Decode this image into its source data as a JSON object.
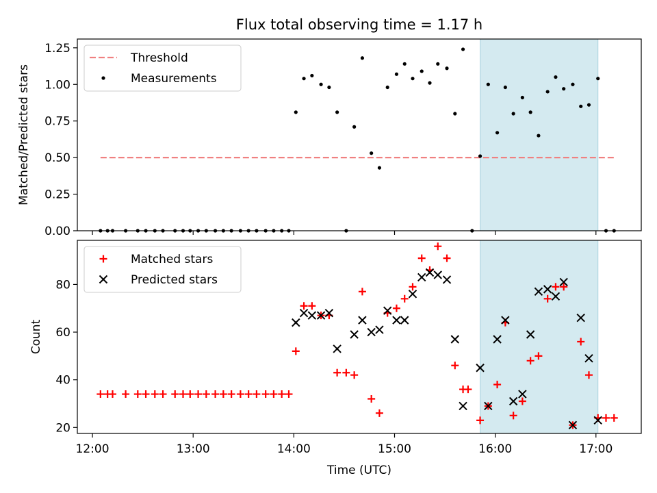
{
  "chart_data": [
    {
      "type": "scatter",
      "title": "Flux total observing time = 1.17 h",
      "xlabel": "",
      "ylabel": "Matched/Predicted stars",
      "xlim": [
        11.85,
        17.45
      ],
      "ylim": [
        0.0,
        1.31
      ],
      "xticks": [
        12,
        13,
        14,
        15,
        16,
        17
      ],
      "yticks": [
        0.0,
        0.25,
        0.5,
        0.75,
        1.0,
        1.25
      ],
      "ytick_labels": [
        "0.00",
        "0.25",
        "0.50",
        "0.75",
        "1.00",
        "1.25"
      ],
      "shaded_region": {
        "x": [
          15.85,
          17.02
        ],
        "color": "#d4eaf0"
      },
      "legend": {
        "position": "top-left",
        "entries": [
          "Threshold",
          "Measurements"
        ]
      },
      "series": [
        {
          "name": "Threshold",
          "style": "dashed-line",
          "color": "#f08080",
          "x": [
            12.08,
            17.2
          ],
          "y": [
            0.5,
            0.5
          ]
        },
        {
          "name": "Measurements",
          "style": "dot",
          "color": "#000000",
          "points": [
            [
              12.08,
              0.0
            ],
            [
              12.15,
              0.0
            ],
            [
              12.2,
              0.0
            ],
            [
              12.33,
              0.0
            ],
            [
              12.45,
              0.0
            ],
            [
              12.53,
              0.0
            ],
            [
              12.62,
              0.0
            ],
            [
              12.7,
              0.0
            ],
            [
              12.82,
              0.0
            ],
            [
              12.9,
              0.0
            ],
            [
              12.97,
              0.0
            ],
            [
              13.05,
              0.0
            ],
            [
              13.13,
              0.0
            ],
            [
              13.22,
              0.0
            ],
            [
              13.3,
              0.0
            ],
            [
              13.38,
              0.0
            ],
            [
              13.47,
              0.0
            ],
            [
              13.55,
              0.0
            ],
            [
              13.63,
              0.0
            ],
            [
              13.72,
              0.0
            ],
            [
              13.8,
              0.0
            ],
            [
              13.88,
              0.0
            ],
            [
              13.95,
              0.0
            ],
            [
              14.02,
              0.81
            ],
            [
              14.1,
              1.04
            ],
            [
              14.18,
              1.06
            ],
            [
              14.27,
              1.0
            ],
            [
              14.35,
              0.98
            ],
            [
              14.43,
              0.81
            ],
            [
              14.52,
              0.0
            ],
            [
              14.6,
              0.71
            ],
            [
              14.68,
              1.18
            ],
            [
              14.77,
              0.53
            ],
            [
              14.85,
              0.43
            ],
            [
              14.93,
              0.98
            ],
            [
              15.02,
              1.07
            ],
            [
              15.1,
              1.14
            ],
            [
              15.18,
              1.04
            ],
            [
              15.27,
              1.09
            ],
            [
              15.35,
              1.01
            ],
            [
              15.43,
              1.14
            ],
            [
              15.52,
              1.11
            ],
            [
              15.6,
              0.8
            ],
            [
              15.68,
              1.24
            ],
            [
              15.77,
              0.0
            ],
            [
              15.85,
              0.51
            ],
            [
              15.93,
              1.0
            ],
            [
              16.02,
              0.67
            ],
            [
              16.1,
              0.98
            ],
            [
              16.18,
              0.8
            ],
            [
              16.27,
              0.91
            ],
            [
              16.35,
              0.81
            ],
            [
              16.43,
              0.65
            ],
            [
              16.52,
              0.95
            ],
            [
              16.6,
              1.05
            ],
            [
              16.68,
              0.97
            ],
            [
              16.77,
              1.0
            ],
            [
              16.85,
              0.85
            ],
            [
              16.93,
              0.86
            ],
            [
              17.02,
              1.04
            ],
            [
              17.1,
              0.0
            ],
            [
              17.18,
              0.0
            ]
          ]
        }
      ]
    },
    {
      "type": "scatter",
      "title": "",
      "xlabel": "Time (UTC)",
      "ylabel": "Count",
      "xlim": [
        11.85,
        17.45
      ],
      "ylim": [
        17.5,
        98.5
      ],
      "xticks": [
        12,
        13,
        14,
        15,
        16,
        17
      ],
      "xtick_labels": [
        "12:00",
        "13:00",
        "14:00",
        "15:00",
        "16:00",
        "17:00"
      ],
      "yticks": [
        20,
        40,
        60,
        80
      ],
      "ytick_labels": [
        "20",
        "40",
        "60",
        "80"
      ],
      "shaded_region": {
        "x": [
          15.85,
          17.02
        ],
        "color": "#d4eaf0"
      },
      "legend": {
        "position": "top-left",
        "entries": [
          "Matched stars",
          "Predicted stars"
        ]
      },
      "series": [
        {
          "name": "Matched stars",
          "marker": "plus",
          "color": "#ff0000",
          "points": [
            [
              12.08,
              34
            ],
            [
              12.15,
              34
            ],
            [
              12.2,
              34
            ],
            [
              12.33,
              34
            ],
            [
              12.45,
              34
            ],
            [
              12.53,
              34
            ],
            [
              12.62,
              34
            ],
            [
              12.7,
              34
            ],
            [
              12.82,
              34
            ],
            [
              12.9,
              34
            ],
            [
              12.97,
              34
            ],
            [
              13.05,
              34
            ],
            [
              13.13,
              34
            ],
            [
              13.22,
              34
            ],
            [
              13.3,
              34
            ],
            [
              13.38,
              34
            ],
            [
              13.47,
              34
            ],
            [
              13.55,
              34
            ],
            [
              13.63,
              34
            ],
            [
              13.72,
              34
            ],
            [
              13.8,
              34
            ],
            [
              13.88,
              34
            ],
            [
              13.95,
              34
            ],
            [
              14.02,
              52
            ],
            [
              14.1,
              71
            ],
            [
              14.18,
              71
            ],
            [
              14.27,
              67
            ],
            [
              14.35,
              67
            ],
            [
              14.43,
              43
            ],
            [
              14.52,
              43
            ],
            [
              14.6,
              42
            ],
            [
              14.68,
              77
            ],
            [
              14.77,
              32
            ],
            [
              14.85,
              26
            ],
            [
              14.93,
              68
            ],
            [
              15.02,
              70
            ],
            [
              15.1,
              74
            ],
            [
              15.18,
              79
            ],
            [
              15.27,
              91
            ],
            [
              15.35,
              86
            ],
            [
              15.43,
              96
            ],
            [
              15.52,
              91
            ],
            [
              15.6,
              46
            ],
            [
              15.68,
              36
            ],
            [
              15.73,
              36
            ],
            [
              15.85,
              23
            ],
            [
              15.93,
              29
            ],
            [
              16.02,
              38
            ],
            [
              16.1,
              64
            ],
            [
              16.18,
              25
            ],
            [
              16.27,
              31
            ],
            [
              16.35,
              48
            ],
            [
              16.43,
              50
            ],
            [
              16.52,
              74
            ],
            [
              16.6,
              79
            ],
            [
              16.68,
              79
            ],
            [
              16.77,
              21
            ],
            [
              16.85,
              56
            ],
            [
              16.93,
              42
            ],
            [
              17.02,
              24
            ],
            [
              17.1,
              24
            ],
            [
              17.18,
              24
            ]
          ]
        },
        {
          "name": "Predicted stars",
          "marker": "x",
          "color": "#000000",
          "points": [
            [
              14.02,
              64
            ],
            [
              14.1,
              68
            ],
            [
              14.18,
              67
            ],
            [
              14.27,
              67
            ],
            [
              14.35,
              68
            ],
            [
              14.43,
              53
            ],
            [
              14.6,
              59
            ],
            [
              14.68,
              65
            ],
            [
              14.77,
              60
            ],
            [
              14.85,
              61
            ],
            [
              14.93,
              69
            ],
            [
              15.02,
              65
            ],
            [
              15.1,
              65
            ],
            [
              15.18,
              76
            ],
            [
              15.27,
              83
            ],
            [
              15.35,
              85
            ],
            [
              15.43,
              84
            ],
            [
              15.52,
              82
            ],
            [
              15.6,
              57
            ],
            [
              15.68,
              29
            ],
            [
              15.85,
              45
            ],
            [
              15.93,
              29
            ],
            [
              16.02,
              57
            ],
            [
              16.1,
              65
            ],
            [
              16.18,
              31
            ],
            [
              16.27,
              34
            ],
            [
              16.35,
              59
            ],
            [
              16.43,
              77
            ],
            [
              16.52,
              78
            ],
            [
              16.6,
              75
            ],
            [
              16.68,
              81
            ],
            [
              16.77,
              21
            ],
            [
              16.85,
              66
            ],
            [
              16.93,
              49
            ],
            [
              17.02,
              23
            ]
          ]
        }
      ]
    }
  ]
}
